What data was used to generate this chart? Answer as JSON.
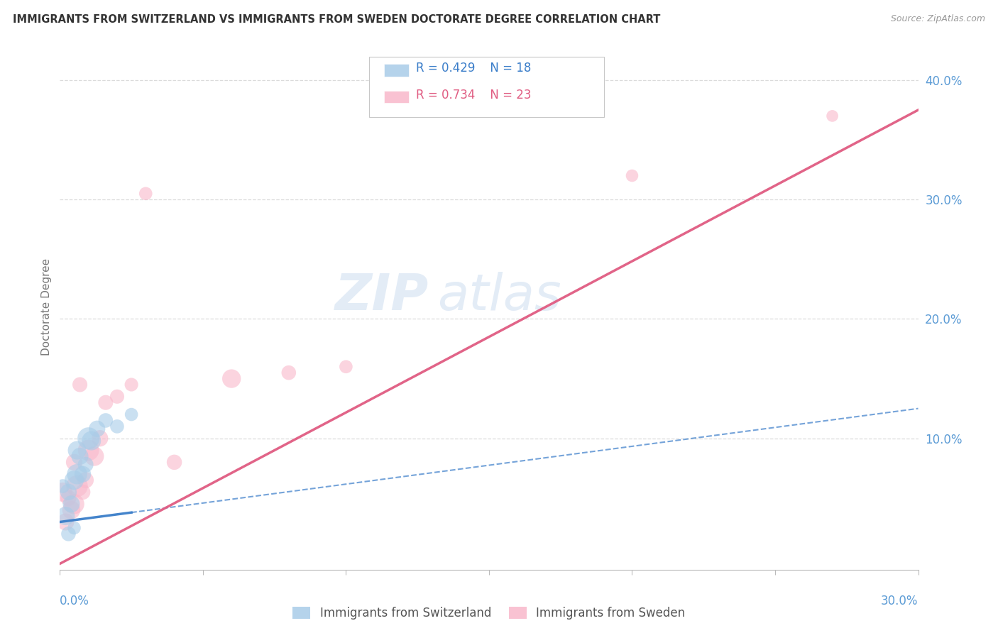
{
  "title": "IMMIGRANTS FROM SWITZERLAND VS IMMIGRANTS FROM SWEDEN DOCTORATE DEGREE CORRELATION CHART",
  "source": "Source: ZipAtlas.com",
  "ylabel": "Doctorate Degree",
  "xtick_label_left": "0.0%",
  "xtick_label_right": "30.0%",
  "xlim": [
    0.0,
    0.3
  ],
  "ylim": [
    -0.01,
    0.43
  ],
  "yticks": [
    0.1,
    0.2,
    0.3,
    0.4
  ],
  "ytick_labels": [
    "10.0%",
    "20.0%",
    "30.0%",
    "40.0%"
  ],
  "legend_swiss_r": "R = 0.429",
  "legend_swiss_n": "N = 18",
  "legend_sweden_r": "R = 0.734",
  "legend_sweden_n": "N = 23",
  "swiss_color": "#a8cce8",
  "sweden_color": "#f9b8cb",
  "swiss_line_color": "#3a7dc9",
  "sweden_line_color": "#e05c82",
  "label_color": "#5b9bd5",
  "grid_color": "#d8d8d8",
  "watermark_color": "#ccddf0",
  "swiss_x": [
    0.001,
    0.002,
    0.003,
    0.003,
    0.004,
    0.005,
    0.005,
    0.006,
    0.006,
    0.007,
    0.008,
    0.009,
    0.01,
    0.011,
    0.013,
    0.016,
    0.02,
    0.025
  ],
  "swiss_y": [
    0.06,
    0.035,
    0.055,
    0.02,
    0.045,
    0.065,
    0.025,
    0.07,
    0.09,
    0.085,
    0.07,
    0.078,
    0.1,
    0.098,
    0.108,
    0.115,
    0.11,
    0.12
  ],
  "swiss_s": [
    200,
    350,
    280,
    220,
    300,
    380,
    180,
    420,
    350,
    300,
    280,
    250,
    500,
    380,
    280,
    220,
    200,
    180
  ],
  "sweden_x": [
    0.001,
    0.002,
    0.003,
    0.004,
    0.005,
    0.005,
    0.006,
    0.007,
    0.008,
    0.009,
    0.01,
    0.012,
    0.014,
    0.016,
    0.02,
    0.025,
    0.03,
    0.04,
    0.06,
    0.08,
    0.1,
    0.2,
    0.27
  ],
  "sweden_y": [
    0.055,
    0.03,
    0.05,
    0.04,
    0.045,
    0.08,
    0.06,
    0.145,
    0.055,
    0.065,
    0.09,
    0.085,
    0.1,
    0.13,
    0.135,
    0.145,
    0.305,
    0.08,
    0.15,
    0.155,
    0.16,
    0.32,
    0.37
  ],
  "sweden_s": [
    380,
    300,
    260,
    340,
    420,
    280,
    480,
    230,
    240,
    270,
    460,
    390,
    280,
    230,
    210,
    190,
    180,
    240,
    360,
    220,
    180,
    160,
    145
  ],
  "swiss_line_x0": 0.0,
  "swiss_line_y0": 0.03,
  "swiss_line_x1": 0.3,
  "swiss_line_y1": 0.125,
  "sweden_line_x0": 0.0,
  "sweden_line_y0": -0.005,
  "sweden_line_x1": 0.3,
  "sweden_line_y1": 0.375
}
